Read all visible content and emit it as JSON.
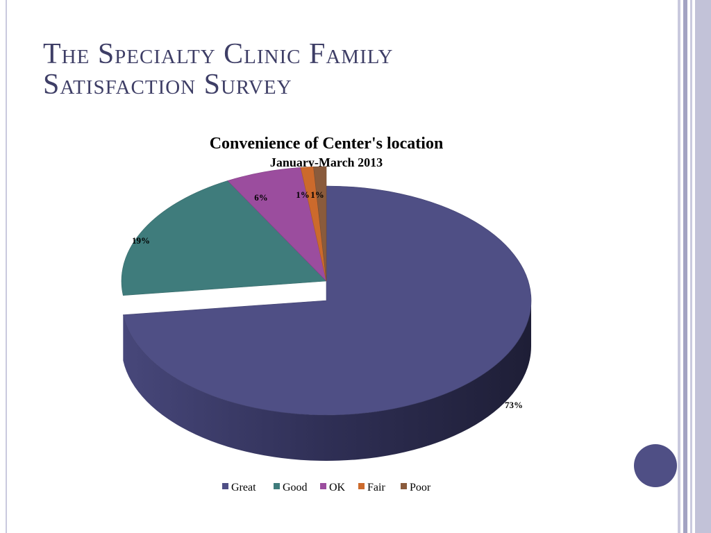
{
  "slide": {
    "title_line1": "The Specialty Clinic Family",
    "title_line2": "Satisfaction Survey"
  },
  "colors": {
    "accent": "#4f4f85",
    "title": "#3e3e66",
    "stripe_light": "#c9c9de",
    "stripe_dark": "#a3a3c2"
  },
  "chart_data": {
    "type": "pie",
    "title": "Convenience of Center's location",
    "subtitle": "January-March 2013",
    "categories": [
      "Great",
      "Good",
      "OK",
      "Fair",
      "Poor"
    ],
    "values": [
      73,
      19,
      6,
      1,
      1
    ],
    "data_labels": [
      "73%",
      "19%",
      "6%",
      "1%",
      "1%"
    ],
    "colors": [
      "#4f4f85",
      "#3f7c7c",
      "#9b4d9e",
      "#cc6a2c",
      "#8a5b3c"
    ],
    "style": "3d-exploded-slice",
    "legend": {
      "position": "bottom",
      "entries": [
        "Great",
        "Good",
        "OK",
        "Fair",
        "Poor"
      ]
    }
  }
}
